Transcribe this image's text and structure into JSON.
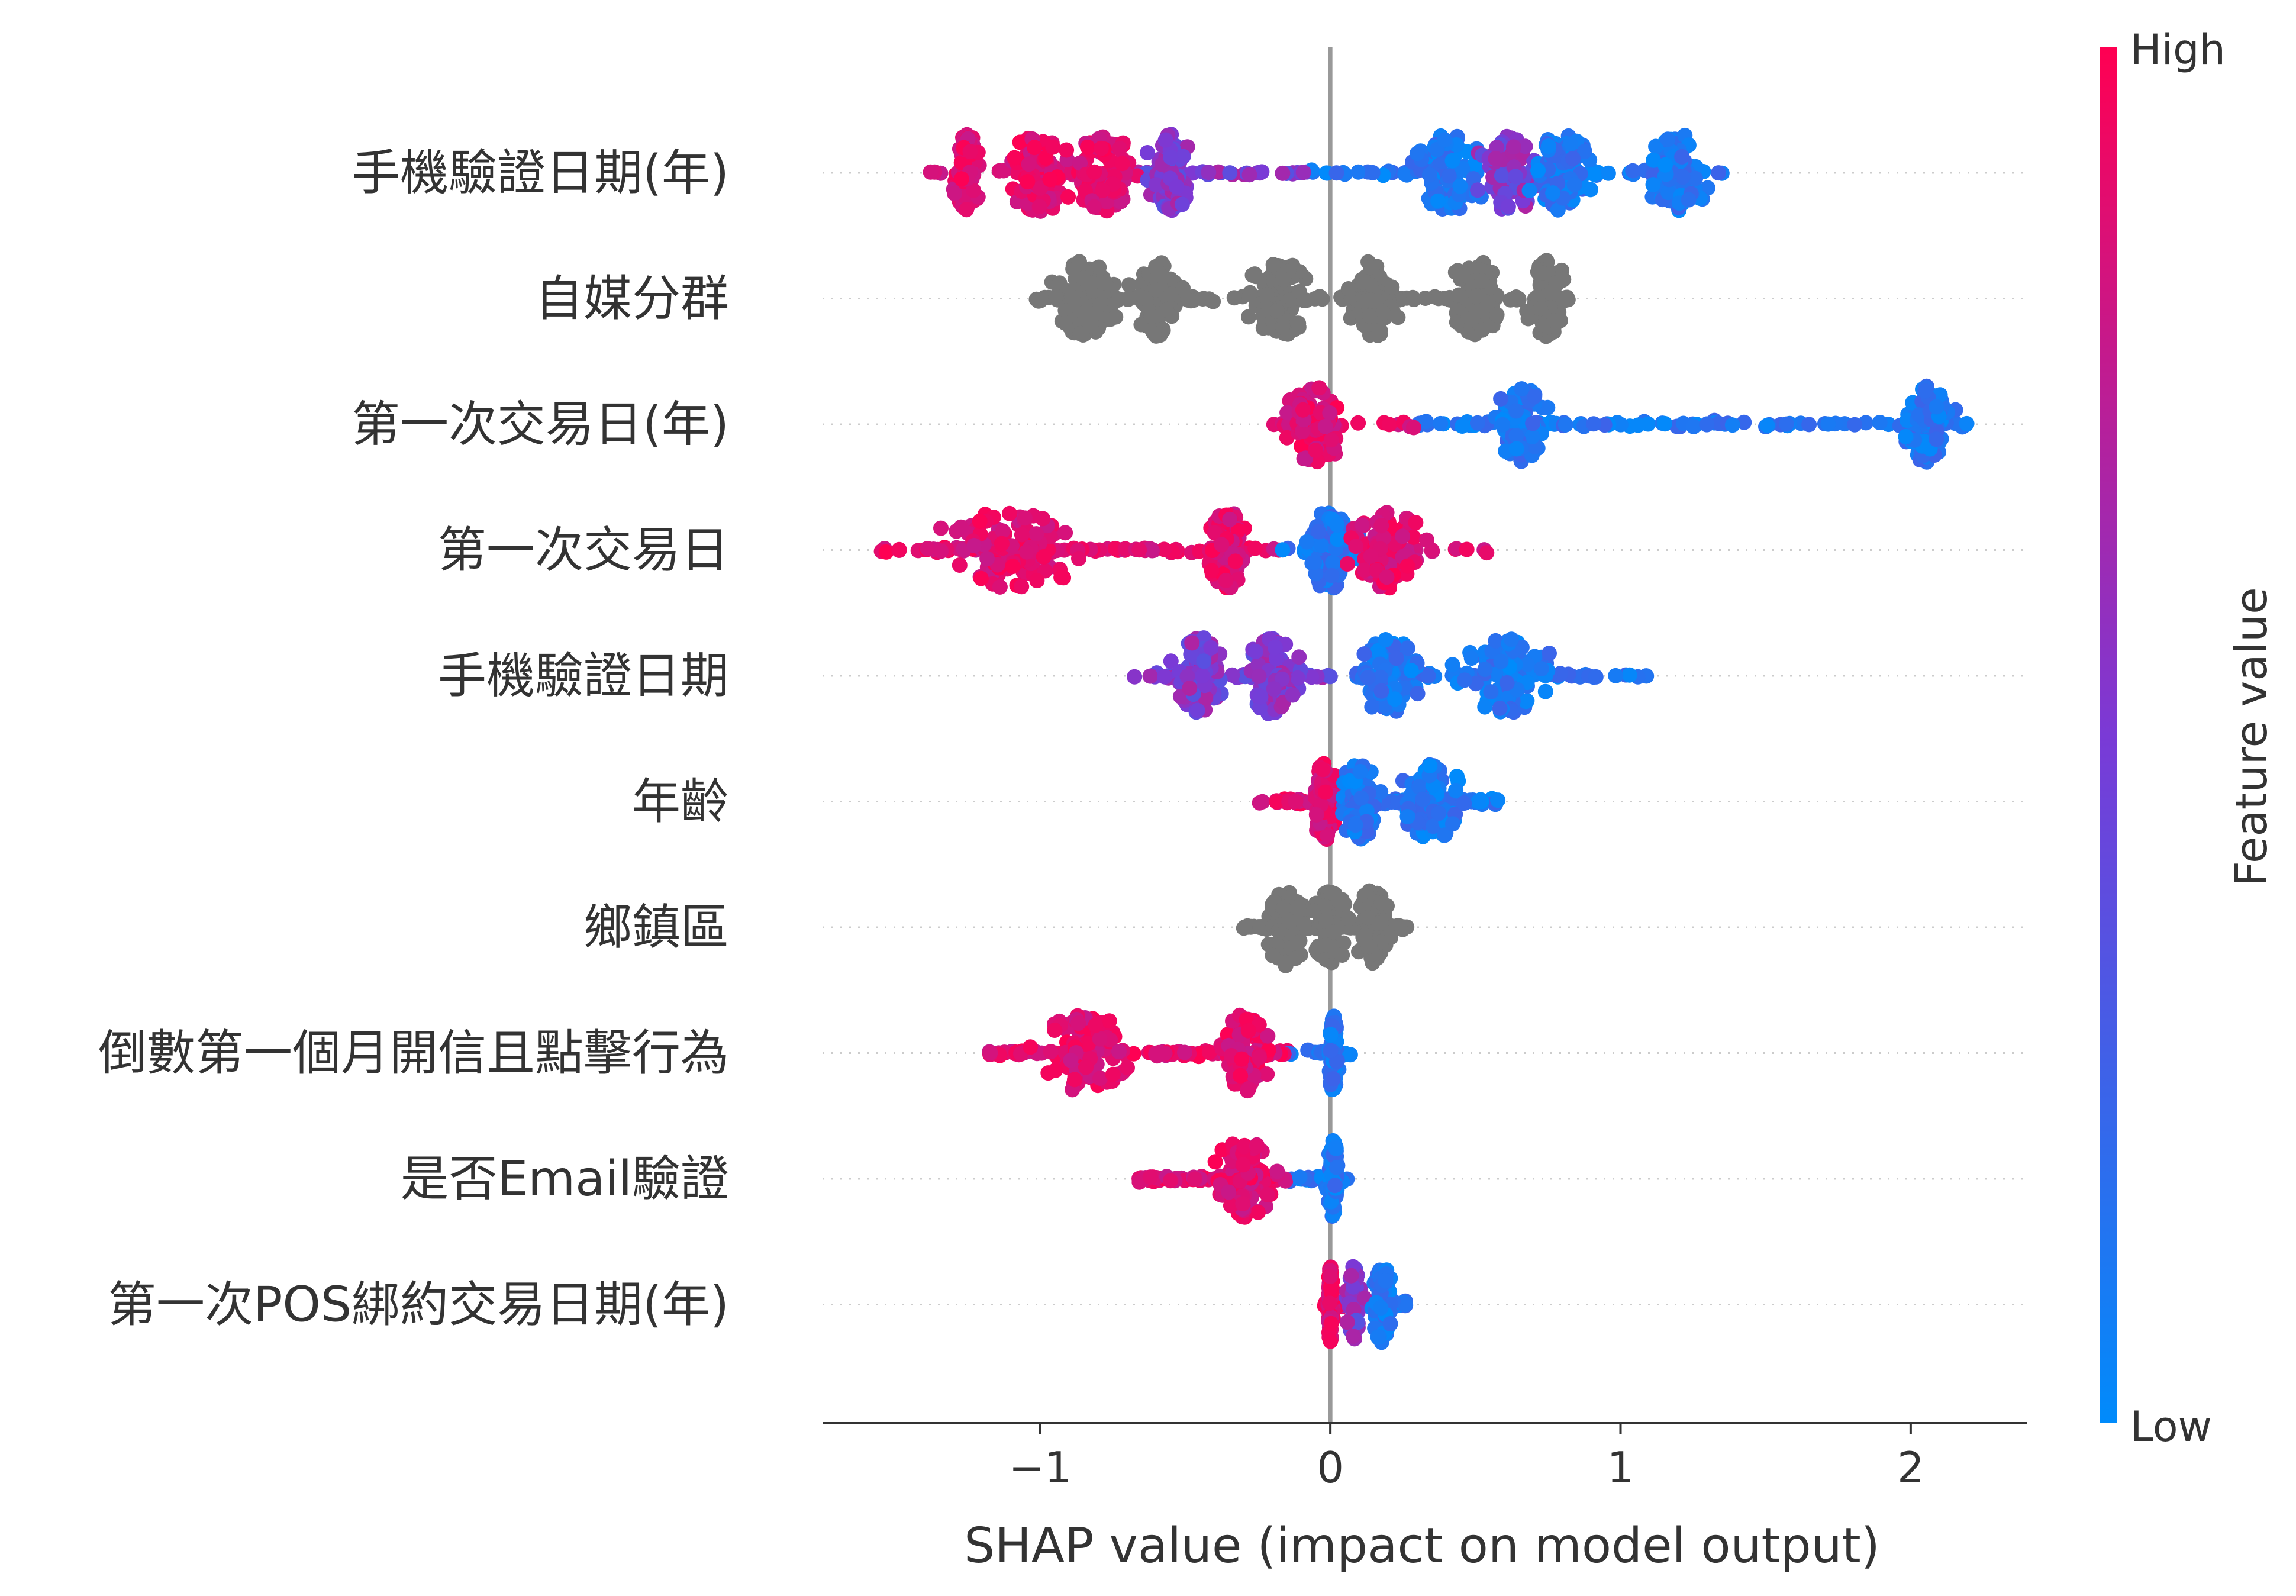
{
  "chart_data": {
    "type": "scatter",
    "subtype": "shap-beeswarm",
    "title": "",
    "xlabel": "SHAP value (impact on model output)",
    "ylabel": "",
    "xlim": [
      -1.75,
      2.4
    ],
    "xticks": [
      {
        "value": -1,
        "label": "−1"
      },
      {
        "value": 0,
        "label": "0"
      },
      {
        "value": 1,
        "label": "1"
      },
      {
        "value": 2,
        "label": "2"
      }
    ],
    "colorbar": {
      "title": "Feature value",
      "high_label": "High",
      "low_label": "Low",
      "high_color": "#ff0052",
      "low_color": "#008bfb"
    },
    "no_value_color": "#777777",
    "zero_line_color": "#999999",
    "grid_color": "#cccccc",
    "features": [
      {
        "name": "手機驗證日期(年)",
        "shap_min": -1.4,
        "shap_max": 1.38,
        "colored": true,
        "clusters": [
          [
            -1.0,
            0.14,
            "high"
          ],
          [
            -0.78,
            0.14,
            "high"
          ],
          [
            -1.25,
            0.06,
            "high"
          ],
          [
            -0.55,
            0.09,
            "mid"
          ],
          [
            0.4,
            0.16,
            "low"
          ],
          [
            0.62,
            0.13,
            "mid"
          ],
          [
            0.8,
            0.12,
            "low"
          ],
          [
            1.2,
            0.12,
            "low"
          ]
        ]
      },
      {
        "name": "自媒分群",
        "shap_min": -1.02,
        "shap_max": 0.88,
        "colored": false,
        "clusters": [
          [
            -0.6,
            0.08,
            "none"
          ],
          [
            -0.18,
            0.12,
            "none"
          ],
          [
            0.15,
            0.1,
            "none"
          ],
          [
            0.5,
            0.1,
            "none"
          ],
          [
            -0.85,
            0.12,
            "none"
          ],
          [
            0.75,
            0.08,
            "none"
          ]
        ]
      },
      {
        "name": "第一次交易日(年)",
        "shap_min": -0.22,
        "shap_max": 2.2,
        "colored": true,
        "clusters": [
          [
            -0.05,
            0.12,
            "high"
          ],
          [
            0.65,
            0.1,
            "low"
          ],
          [
            2.05,
            0.1,
            "low"
          ]
        ]
      },
      {
        "name": "第一次交易日",
        "shap_min": -1.55,
        "shap_max": 0.6,
        "colored": true,
        "clusters": [
          [
            -0.35,
            0.09,
            "high"
          ],
          [
            -1.1,
            0.3,
            "high"
          ],
          [
            0.0,
            0.12,
            "low"
          ],
          [
            0.2,
            0.15,
            "high"
          ]
        ]
      },
      {
        "name": "手機驗證日期",
        "shap_min": -0.68,
        "shap_max": 1.1,
        "colored": true,
        "clusters": [
          [
            -0.2,
            0.1,
            "mid"
          ],
          [
            0.2,
            0.12,
            "low"
          ],
          [
            -0.45,
            0.1,
            "mid"
          ],
          [
            0.6,
            0.2,
            "low"
          ]
        ]
      },
      {
        "name": "年齡",
        "shap_min": -0.25,
        "shap_max": 0.58,
        "colored": true,
        "clusters": [
          [
            -0.02,
            0.05,
            "high"
          ],
          [
            0.1,
            0.08,
            "low"
          ],
          [
            0.35,
            0.12,
            "low"
          ]
        ]
      },
      {
        "name": "鄉鎮區",
        "shap_min": -0.3,
        "shap_max": 0.28,
        "colored": false,
        "clusters": [
          [
            0.0,
            0.07,
            "none"
          ],
          [
            -0.15,
            0.08,
            "none"
          ],
          [
            0.15,
            0.07,
            "none"
          ]
        ]
      },
      {
        "name": "倒數第一個月開信且點擊行為",
        "shap_min": -1.18,
        "shap_max": 0.08,
        "colored": true,
        "clusters": [
          [
            0.01,
            0.02,
            "low"
          ],
          [
            -0.3,
            0.1,
            "high"
          ],
          [
            -0.85,
            0.2,
            "high"
          ]
        ]
      },
      {
        "name": "是否Email驗證",
        "shap_min": -0.66,
        "shap_max": 0.06,
        "colored": true,
        "clusters": [
          [
            0.01,
            0.02,
            "low"
          ],
          [
            -0.3,
            0.15,
            "high"
          ]
        ]
      },
      {
        "name": "第一次POS綁約交易日期(年)",
        "shap_min": -0.02,
        "shap_max": 0.26,
        "colored": true,
        "clusters": [
          [
            0.0,
            0.01,
            "high"
          ],
          [
            0.08,
            0.03,
            "mid"
          ],
          [
            0.18,
            0.04,
            "low"
          ]
        ]
      }
    ]
  }
}
